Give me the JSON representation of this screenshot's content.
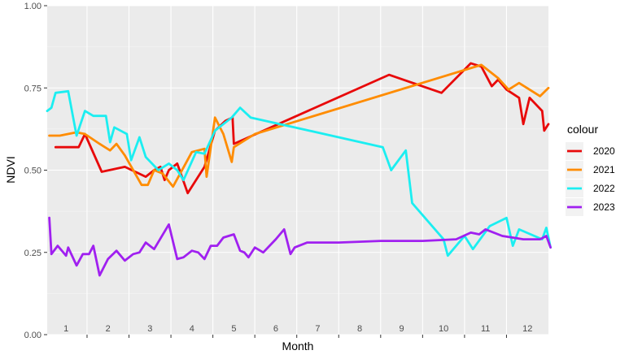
{
  "chart_data": {
    "type": "line",
    "title": "",
    "xlabel": "Month",
    "ylabel": "NDVI",
    "xlim": [
      0.55,
      12.5
    ],
    "ylim": [
      0,
      1
    ],
    "grid": true,
    "legend_placement": "right",
    "legend_title": "colour",
    "month_ticks": [
      "1",
      "2",
      "3",
      "4",
      "5",
      "6",
      "7",
      "8",
      "9",
      "10",
      "11",
      "12"
    ],
    "y_ticks": [
      {
        "value": 0.0,
        "label": "0.00"
      },
      {
        "value": 0.25,
        "label": "0.25"
      },
      {
        "value": 0.5,
        "label": "0.50"
      },
      {
        "value": 0.75,
        "label": "0.75"
      },
      {
        "value": 1.0,
        "label": "1.00"
      }
    ],
    "series": [
      {
        "name": "2020",
        "color": "#e8090a",
        "points": [
          [
            0.75,
            0.57
          ],
          [
            1.3,
            0.57
          ],
          [
            1.45,
            0.61
          ],
          [
            1.85,
            0.495
          ],
          [
            2.4,
            0.51
          ],
          [
            2.9,
            0.48
          ],
          [
            3.1,
            0.5
          ],
          [
            3.25,
            0.51
          ],
          [
            3.35,
            0.47
          ],
          [
            3.45,
            0.5
          ],
          [
            3.65,
            0.52
          ],
          [
            3.9,
            0.43
          ],
          [
            4.3,
            0.51
          ],
          [
            4.55,
            0.62
          ],
          [
            4.8,
            0.65
          ],
          [
            4.97,
            0.66
          ],
          [
            5.0,
            0.58
          ],
          [
            8.7,
            0.79
          ],
          [
            9.95,
            0.735
          ],
          [
            10.65,
            0.825
          ],
          [
            10.9,
            0.815
          ],
          [
            11.15,
            0.755
          ],
          [
            11.3,
            0.775
          ],
          [
            11.5,
            0.745
          ],
          [
            11.8,
            0.72
          ],
          [
            11.9,
            0.64
          ],
          [
            12.05,
            0.72
          ],
          [
            12.35,
            0.68
          ],
          [
            12.4,
            0.62
          ],
          [
            12.5,
            0.64
          ]
        ]
      },
      {
        "name": "2021",
        "color": "#ff8c00",
        "points": [
          [
            0.6,
            0.605
          ],
          [
            0.85,
            0.605
          ],
          [
            1.25,
            0.615
          ],
          [
            1.45,
            0.61
          ],
          [
            1.8,
            0.58
          ],
          [
            2.05,
            0.56
          ],
          [
            2.2,
            0.58
          ],
          [
            2.4,
            0.545
          ],
          [
            2.8,
            0.455
          ],
          [
            2.95,
            0.455
          ],
          [
            3.1,
            0.5
          ],
          [
            3.3,
            0.49
          ],
          [
            3.55,
            0.45
          ],
          [
            3.85,
            0.52
          ],
          [
            4.0,
            0.555
          ],
          [
            4.3,
            0.565
          ],
          [
            4.35,
            0.48
          ],
          [
            4.55,
            0.66
          ],
          [
            4.75,
            0.61
          ],
          [
            4.95,
            0.525
          ],
          [
            5.0,
            0.57
          ],
          [
            5.5,
            0.61
          ],
          [
            10.9,
            0.82
          ],
          [
            11.3,
            0.78
          ],
          [
            11.55,
            0.745
          ],
          [
            11.8,
            0.765
          ],
          [
            12.3,
            0.725
          ],
          [
            12.5,
            0.75
          ]
        ]
      },
      {
        "name": "2022",
        "color": "#1beef1",
        "points": [
          [
            0.55,
            0.68
          ],
          [
            0.65,
            0.69
          ],
          [
            0.75,
            0.735
          ],
          [
            1.05,
            0.74
          ],
          [
            1.25,
            0.605
          ],
          [
            1.45,
            0.68
          ],
          [
            1.65,
            0.665
          ],
          [
            1.85,
            0.665
          ],
          [
            1.95,
            0.665
          ],
          [
            2.05,
            0.585
          ],
          [
            2.15,
            0.63
          ],
          [
            2.45,
            0.61
          ],
          [
            2.55,
            0.53
          ],
          [
            2.75,
            0.6
          ],
          [
            2.9,
            0.54
          ],
          [
            3.2,
            0.5
          ],
          [
            3.45,
            0.52
          ],
          [
            3.65,
            0.5
          ],
          [
            3.8,
            0.47
          ],
          [
            4.1,
            0.555
          ],
          [
            4.3,
            0.55
          ],
          [
            4.55,
            0.62
          ],
          [
            4.95,
            0.66
          ],
          [
            5.15,
            0.69
          ],
          [
            5.4,
            0.66
          ],
          [
            8.55,
            0.57
          ],
          [
            8.75,
            0.5
          ],
          [
            9.1,
            0.56
          ],
          [
            9.25,
            0.4
          ],
          [
            10.0,
            0.29
          ],
          [
            10.1,
            0.24
          ],
          [
            10.5,
            0.3
          ],
          [
            10.7,
            0.26
          ],
          [
            11.1,
            0.33
          ],
          [
            11.5,
            0.355
          ],
          [
            11.65,
            0.27
          ],
          [
            11.8,
            0.32
          ],
          [
            12.35,
            0.29
          ],
          [
            12.45,
            0.325
          ],
          [
            12.55,
            0.265
          ]
        ]
      },
      {
        "name": "2023",
        "color": "#a020f0",
        "points": [
          [
            0.6,
            0.355
          ],
          [
            0.65,
            0.245
          ],
          [
            0.8,
            0.27
          ],
          [
            1.0,
            0.24
          ],
          [
            1.05,
            0.265
          ],
          [
            1.25,
            0.21
          ],
          [
            1.4,
            0.245
          ],
          [
            1.55,
            0.245
          ],
          [
            1.65,
            0.27
          ],
          [
            1.8,
            0.18
          ],
          [
            2.0,
            0.23
          ],
          [
            2.2,
            0.255
          ],
          [
            2.4,
            0.225
          ],
          [
            2.6,
            0.245
          ],
          [
            2.75,
            0.25
          ],
          [
            2.9,
            0.28
          ],
          [
            3.1,
            0.26
          ],
          [
            3.45,
            0.335
          ],
          [
            3.65,
            0.23
          ],
          [
            3.8,
            0.235
          ],
          [
            4.0,
            0.255
          ],
          [
            4.15,
            0.25
          ],
          [
            4.3,
            0.23
          ],
          [
            4.45,
            0.27
          ],
          [
            4.6,
            0.27
          ],
          [
            4.75,
            0.295
          ],
          [
            5.0,
            0.305
          ],
          [
            5.15,
            0.255
          ],
          [
            5.25,
            0.25
          ],
          [
            5.35,
            0.235
          ],
          [
            5.5,
            0.265
          ],
          [
            5.7,
            0.25
          ],
          [
            6.0,
            0.29
          ],
          [
            6.2,
            0.32
          ],
          [
            6.35,
            0.245
          ],
          [
            6.45,
            0.265
          ],
          [
            6.75,
            0.28
          ],
          [
            7.5,
            0.28
          ],
          [
            8.5,
            0.285
          ],
          [
            9.5,
            0.285
          ],
          [
            10.3,
            0.29
          ],
          [
            10.65,
            0.31
          ],
          [
            10.85,
            0.305
          ],
          [
            11.0,
            0.32
          ],
          [
            11.4,
            0.3
          ],
          [
            11.9,
            0.29
          ],
          [
            12.3,
            0.29
          ],
          [
            12.45,
            0.3
          ],
          [
            12.55,
            0.265
          ]
        ]
      }
    ]
  }
}
